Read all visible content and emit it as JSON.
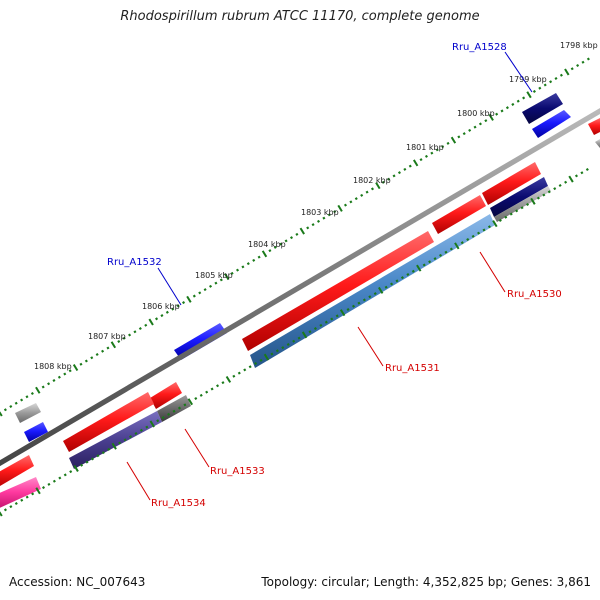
{
  "title": "Rhodospirillum rubrum ATCC 11170, complete genome",
  "footer": {
    "accession": "Accession: NC_007643",
    "summary": "Topology: circular; Length: 4,352,825 bp; Genes: 3,861"
  },
  "kbp_labels": [
    "1798 kbp",
    "1799 kbp",
    "1800 kbp",
    "1801 kbp",
    "1802 kbp",
    "1803 kbp",
    "1804 kbp",
    "1805 kbp",
    "1806 kbp",
    "1807 kbp",
    "1808 kbp"
  ],
  "gene_labels": {
    "a1528": "Rru_A1528",
    "a1530": "Rru_A1530",
    "a1531": "Rru_A1531",
    "a1532": "Rru_A1532",
    "a1533": "Rru_A1533",
    "a1534": "Rru_A1534"
  },
  "colors": {
    "forward_gene": "#ff1a1a",
    "reverse_gene": "#1a1aff",
    "reverse_gene_dark": "#0a0a80",
    "reverse_cds_steel": "#4a88c8",
    "reverse_cds_slate": "#4a3f90",
    "pseudogene_grey": "#8a8a8a",
    "misc_pink": "#ff3aa0",
    "label_blue": "#0000cc",
    "label_red": "#d40000",
    "backbone": "#777777",
    "tick_green": "#1a7a1a"
  }
}
